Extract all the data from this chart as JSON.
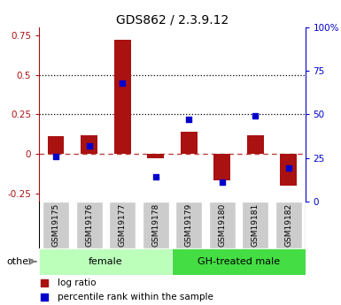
{
  "title": "GDS862 / 2.3.9.12",
  "samples": [
    "GSM19175",
    "GSM19176",
    "GSM19177",
    "GSM19178",
    "GSM19179",
    "GSM19180",
    "GSM19181",
    "GSM19182"
  ],
  "log_ratio": [
    0.11,
    0.12,
    0.72,
    -0.03,
    0.14,
    -0.17,
    0.12,
    -0.2
  ],
  "percentile_rank": [
    0.26,
    0.32,
    0.68,
    0.14,
    0.47,
    0.11,
    0.49,
    0.19
  ],
  "bar_color": "#aa1111",
  "dot_color": "#0000cc",
  "groups": [
    {
      "label": "female",
      "start": 0,
      "end": 4,
      "color": "#bbffbb"
    },
    {
      "label": "GH-treated male",
      "start": 4,
      "end": 8,
      "color": "#44dd44"
    }
  ],
  "ylim_left": [
    -0.3,
    0.8
  ],
  "ylim_right": [
    0.0,
    1.0
  ],
  "yticks_left": [
    -0.25,
    0.0,
    0.25,
    0.5,
    0.75
  ],
  "yticks_right": [
    0.0,
    0.25,
    0.5,
    0.75,
    1.0
  ],
  "ytick_labels_right": [
    "0",
    "25",
    "50",
    "75",
    "100%"
  ],
  "ytick_labels_left": [
    "-0.25",
    "0",
    "0.25",
    "0.5",
    "0.75"
  ],
  "hlines": [
    0.25,
    0.5
  ],
  "background_color": "#ffffff",
  "legend_log_ratio": "log ratio",
  "legend_percentile": "percentile rank within the sample",
  "other_label": "other",
  "bar_width": 0.5
}
